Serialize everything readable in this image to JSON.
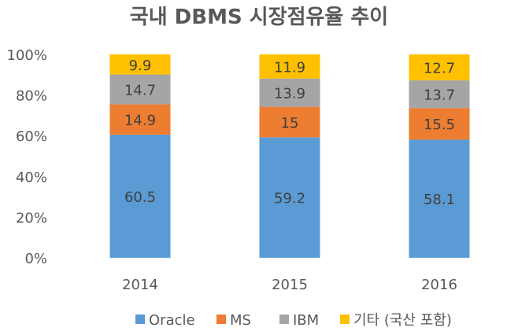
{
  "chart_data": {
    "type": "bar",
    "stacked": true,
    "title": "국내 DBMS 시장점유율 추이",
    "categories": [
      "2014",
      "2015",
      "2016"
    ],
    "series": [
      {
        "name": "Oracle",
        "values": [
          60.5,
          59.2,
          58.1
        ],
        "color": "#5B9BD5"
      },
      {
        "name": "MS",
        "values": [
          14.9,
          15,
          15.5
        ],
        "color": "#ED7D31"
      },
      {
        "name": "IBM",
        "values": [
          14.7,
          13.9,
          13.7
        ],
        "color": "#A5A5A5"
      },
      {
        "name": "기타 (국산 포함)",
        "values": [
          9.9,
          11.9,
          12.7
        ],
        "color": "#FFC000"
      }
    ],
    "ylim": [
      0,
      100
    ],
    "yticks": [
      "0%",
      "20%",
      "40%",
      "60%",
      "80%",
      "100%"
    ],
    "grid": false,
    "legend": "bottom",
    "data_labels": true
  }
}
